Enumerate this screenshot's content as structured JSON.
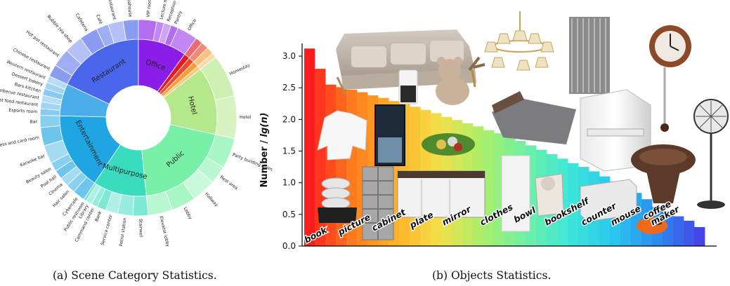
{
  "captions": {
    "left": "(a) Scene Category Statistics.",
    "right": "(b) Objects Statistics."
  },
  "chart_data": [
    {
      "type": "sunburst",
      "inner": [
        {
          "name": "Restaurant",
          "share": 0.18,
          "color": "#4a66ea"
        },
        {
          "name": "Office",
          "share": 0.1,
          "color": "#8a1ee8"
        },
        {
          "name": "",
          "share": 0.012,
          "color": "#e11c20"
        },
        {
          "name": "",
          "share": 0.012,
          "color": "#ee4b2b"
        },
        {
          "name": "",
          "share": 0.012,
          "color": "#f7a03a"
        },
        {
          "name": "",
          "share": 0.008,
          "color": "#f9c97a"
        },
        {
          "name": "Hotel",
          "share": 0.14,
          "color": "#b5e88a"
        },
        {
          "name": "Public",
          "share": 0.2,
          "color": "#79f0a8"
        },
        {
          "name": "Multipurpose",
          "share": 0.11,
          "color": "#39dcbe"
        },
        {
          "name": "Entertainment",
          "share": 0.16,
          "color": "#1fa6e2"
        },
        {
          "name": "",
          "share": 0.066,
          "color": "#4aaeea"
        }
      ],
      "outer": [
        {
          "name": "Chinese restaurant",
          "group": 0,
          "share": 0.02
        },
        {
          "name": "Hot pot restaurant",
          "group": 0,
          "share": 0.03
        },
        {
          "name": "Bubble tea shop",
          "group": 0,
          "share": 0.03
        },
        {
          "name": "Cafeteria",
          "group": 0,
          "share": 0.03
        },
        {
          "name": "Café",
          "group": 0,
          "share": 0.02
        },
        {
          "name": "VIP room",
          "group": 1,
          "share": 0.03
        },
        {
          "name": "Lecture hall",
          "group": 1,
          "share": 0.012
        },
        {
          "name": "Reception room",
          "group": 1,
          "share": 0.012
        },
        {
          "name": "Pantry",
          "group": 1,
          "share": 0.012
        },
        {
          "name": "Office",
          "group": 1,
          "share": 0.034
        },
        {
          "name": "",
          "group": 2,
          "share": 0.012
        },
        {
          "name": "",
          "group": 3,
          "share": 0.012
        },
        {
          "name": "",
          "group": 4,
          "share": 0.012
        },
        {
          "name": "",
          "group": 5,
          "share": 0.008
        },
        {
          "name": "Homestay",
          "group": 6,
          "share": 0.07
        },
        {
          "name": "Hotel",
          "group": 6,
          "share": 0.07
        },
        {
          "name": "Party building room",
          "group": 7,
          "share": 0.05
        },
        {
          "name": "Rest area",
          "group": 7,
          "share": 0.03
        },
        {
          "name": "Hallway",
          "group": 7,
          "share": 0.04
        },
        {
          "name": "Lobby",
          "group": 7,
          "share": 0.04
        },
        {
          "name": "Elevator lobby",
          "group": 7,
          "share": 0.04
        },
        {
          "name": "Stairwell",
          "group": 8,
          "share": 0.025
        },
        {
          "name": "Petrol station",
          "group": 8,
          "share": 0.025
        },
        {
          "name": "Service center",
          "group": 8,
          "share": 0.02
        },
        {
          "name": "Bank",
          "group": 8,
          "share": 0.015
        },
        {
          "name": "Command center",
          "group": 8,
          "share": 0.01
        },
        {
          "name": "Library",
          "group": 8,
          "share": 0.01
        },
        {
          "name": "Public restroom",
          "group": 8,
          "share": 0.005
        },
        {
          "name": "Cybercafe",
          "group": 9,
          "share": 0.02
        },
        {
          "name": "Hair salon",
          "group": 9,
          "share": 0.015
        },
        {
          "name": "Cinema",
          "group": 9,
          "share": 0.015
        },
        {
          "name": "Pool hall",
          "group": 9,
          "share": 0.015
        },
        {
          "name": "Beauty salon",
          "group": 9,
          "share": 0.015
        },
        {
          "name": "Karaoke bar",
          "group": 9,
          "share": 0.03
        },
        {
          "name": "Chess and card room",
          "group": 9,
          "share": 0.03
        },
        {
          "name": "Bar",
          "group": 9,
          "share": 0.02
        },
        {
          "name": "Esports room",
          "group": 10,
          "share": 0.011
        },
        {
          "name": "Fast food restaurant",
          "group": 10,
          "share": 0.011
        },
        {
          "name": "Barbecue restaurant",
          "group": 10,
          "share": 0.011
        },
        {
          "name": "Bars kitchen",
          "group": 10,
          "share": 0.011
        },
        {
          "name": "Dessert bakery",
          "group": 10,
          "share": 0.011
        },
        {
          "name": "Western restaurant",
          "group": 10,
          "share": 0.011
        },
        {
          "name": "Buffet restaurant",
          "group": 0,
          "share": 0.025
        },
        {
          "name": "Teahouse",
          "group": 0,
          "share": 0.025
        }
      ]
    },
    {
      "type": "bar",
      "ylabel": "Number / lg(n)",
      "ylim": [
        0,
        3.2
      ],
      "yticks": [
        "0.0",
        "0.5",
        "1.0",
        "1.5",
        "2.0",
        "2.5",
        "3.0"
      ],
      "values": [
        3.12,
        2.8,
        2.55,
        2.51,
        2.47,
        2.43,
        2.38,
        2.34,
        2.29,
        2.25,
        2.2,
        2.15,
        2.1,
        2.04,
        1.99,
        1.94,
        1.89,
        1.83,
        1.78,
        1.72,
        1.66,
        1.59,
        1.52,
        1.45,
        1.38,
        1.31,
        1.25,
        1.18,
        1.1,
        1.02,
        0.94,
        0.84,
        0.74,
        0.62,
        0.55,
        0.47,
        0.4,
        0.3
      ],
      "category_labels": [
        "book",
        "picture",
        "cabinet",
        "plate",
        "mirror",
        "clothes",
        "bowl",
        "bookshelf",
        "counter",
        "mouse",
        "coffee maker"
      ],
      "colormap": [
        "#ff1d1d",
        "#ff7e1e",
        "#ffb32a",
        "#f3e04a",
        "#a9f06a",
        "#6cf0a6",
        "#3de6d8",
        "#2bc7ee",
        "#2a8ef0",
        "#4646e8"
      ]
    }
  ]
}
